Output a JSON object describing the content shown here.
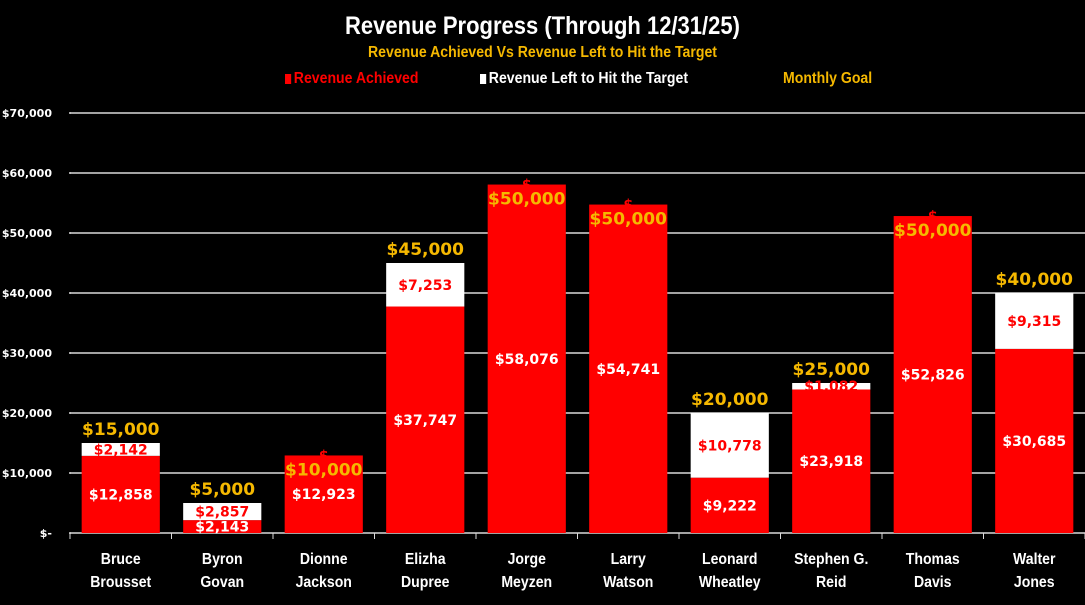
{
  "colors": {
    "achieved": "#ff0000",
    "left": "#ffffff",
    "goal_text": "#f5b800",
    "background": "#000000",
    "grid": "#d9d9d9"
  },
  "chart_data": {
    "type": "bar",
    "stacked": true,
    "title": "Revenue Progress (Through 12/31/25)",
    "subtitle": "Revenue Achieved Vs Revenue Left to Hit the Target",
    "legend": {
      "placement": "top",
      "entries": [
        "Revenue Achieved",
        "Revenue Left to Hit the Target",
        "Monthly Goal"
      ]
    },
    "categories": [
      [
        "Bruce",
        "Brousset"
      ],
      [
        "Byron",
        "Govan"
      ],
      [
        "Dionne",
        "Jackson"
      ],
      [
        "Elizha",
        "Dupree"
      ],
      [
        "Jorge",
        "Meyzen"
      ],
      [
        "Larry",
        "Watson"
      ],
      [
        "Leonard",
        "Wheatley"
      ],
      [
        "Stephen G.",
        "Reid"
      ],
      [
        "Thomas",
        "Davis"
      ],
      [
        "Walter",
        "Jones"
      ]
    ],
    "series": [
      {
        "name": "Revenue Achieved",
        "values": [
          12858,
          2143,
          12923,
          37747,
          58076,
          54741,
          9222,
          23918,
          52826,
          30685
        ],
        "labels": [
          "$12,858",
          "$2,143",
          "$12,923",
          "$37,747",
          "$58,076",
          "$54,741",
          "$9,222",
          "$23,918",
          "$52,826",
          "$30,685"
        ]
      },
      {
        "name": "Revenue Left to Hit the Target",
        "values": [
          2142,
          2857,
          0,
          7253,
          0,
          0,
          10778,
          1082,
          0,
          9315
        ],
        "labels": [
          "$2,142",
          "$2,857",
          "$",
          "$7,253",
          "$",
          "$",
          "$10,778",
          "$1,082",
          "$",
          "$9,315"
        ]
      },
      {
        "name": "Monthly Goal",
        "values": [
          15000,
          5000,
          10000,
          45000,
          50000,
          50000,
          20000,
          25000,
          50000,
          40000
        ],
        "labels": [
          "$15,000",
          "$5,000",
          "$10,000",
          "$45,000",
          "$50,000",
          "$50,000",
          "$20,000",
          "$25,000",
          "$50,000",
          "$40,000"
        ]
      }
    ],
    "yaxis": {
      "ylim": [
        0,
        70000
      ],
      "ticks": [
        0,
        10000,
        20000,
        30000,
        40000,
        50000,
        60000,
        70000
      ],
      "tick_labels": [
        "$-",
        "$10,000",
        "$20,000",
        "$30,000",
        "$40,000",
        "$50,000",
        "$60,000",
        "$70,000"
      ]
    },
    "grid": true,
    "xlabel": "",
    "ylabel": ""
  }
}
